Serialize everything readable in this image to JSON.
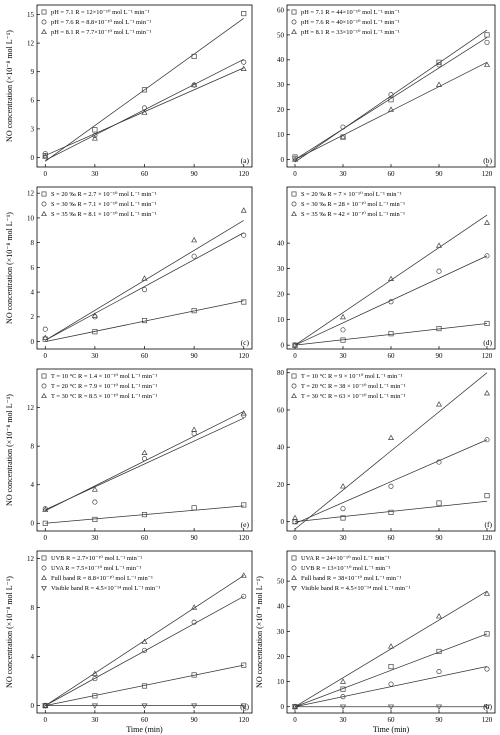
{
  "figure": {
    "x_axis_title": "Time (min)"
  },
  "chart_data": [
    {
      "panel": "(a)",
      "type": "scatter",
      "ylabel": "NO concentration (×10⁻⁸ mol L⁻¹)",
      "xlim": [
        -5,
        125
      ],
      "ylim": [
        -1,
        16
      ],
      "xticks": [
        0,
        30,
        60,
        90,
        120
      ],
      "yticks": [
        0,
        3,
        6,
        9,
        12,
        15
      ],
      "x": [
        0,
        30,
        60,
        90,
        120
      ],
      "series": [
        {
          "legend": "pH = 7.1 R = 12×10⁻¹⁰ mol L⁻¹ min⁻¹",
          "marker": "square",
          "values": [
            0.2,
            2.9,
            7.1,
            10.6,
            15.1
          ],
          "fit": [
            -0.4,
            14.6
          ]
        },
        {
          "legend": "pH = 7.6 R = 8.8×10⁻¹⁰ mol L⁻¹ min⁻¹",
          "marker": "circle",
          "values": [
            0.4,
            2.3,
            5.2,
            7.6,
            10.0
          ],
          "fit": [
            -0.3,
            10.3
          ]
        },
        {
          "legend": "pH = 8.1 R = 7.7×10⁻¹⁰ mol L⁻¹ min⁻¹",
          "marker": "triangle",
          "values": [
            0.1,
            2.0,
            4.7,
            7.6,
            9.3
          ],
          "fit": [
            0.2,
            9.4
          ]
        }
      ]
    },
    {
      "panel": "(b)",
      "type": "scatter",
      "ylabel": "",
      "xlim": [
        -5,
        125
      ],
      "ylim": [
        -3,
        62
      ],
      "xticks": [
        0,
        30,
        60,
        90,
        120
      ],
      "yticks": [
        0,
        10,
        20,
        30,
        40,
        50,
        60
      ],
      "x": [
        0,
        30,
        60,
        90,
        120
      ],
      "series": [
        {
          "legend": "pH = 7.1 R = 44×10⁻¹⁰ mol L⁻¹ min⁻¹",
          "marker": "square",
          "values": [
            1,
            9,
            24,
            39,
            50
          ],
          "fit": [
            -1,
            52
          ]
        },
        {
          "legend": "pH = 7.6 R = 40×10⁻¹⁰ mol L⁻¹ min⁻¹",
          "marker": "circle",
          "values": [
            0.5,
            13,
            26,
            38,
            47
          ],
          "fit": [
            0,
            49
          ]
        },
        {
          "legend": "pH = 8.1 R = 33×10⁻¹⁰ mol L⁻¹ min⁻¹",
          "marker": "triangle",
          "values": [
            0,
            9,
            20,
            30,
            38
          ],
          "fit": [
            0,
            39
          ]
        }
      ]
    },
    {
      "panel": "(c)",
      "type": "scatter",
      "ylabel": "NO concentration (×10⁻⁸ mol L⁻¹)",
      "xlim": [
        -5,
        125
      ],
      "ylim": [
        -0.6,
        12.5
      ],
      "xticks": [
        0,
        30,
        60,
        90,
        120
      ],
      "yticks": [
        0,
        2,
        4,
        6,
        8,
        10,
        12
      ],
      "x": [
        0,
        30,
        60,
        90,
        120
      ],
      "series": [
        {
          "legend": "S = 20 ‰ R = 2.7 × 10⁻¹⁰ mol L⁻¹ min⁻¹",
          "marker": "square",
          "values": [
            0.2,
            0.8,
            1.7,
            2.5,
            3.2
          ],
          "fit": [
            0.0,
            3.3
          ]
        },
        {
          "legend": "S = 30 ‰ R = 7.1 × 10⁻¹⁰ mol L⁻¹ min⁻¹",
          "marker": "circle",
          "values": [
            1.0,
            2.0,
            4.2,
            6.9,
            8.6
          ],
          "fit": [
            0.1,
            8.8
          ]
        },
        {
          "legend": "S = 35 ‰ R = 8.1 × 10⁻¹⁰ mol L⁻¹ min⁻¹",
          "marker": "triangle",
          "values": [
            0.3,
            2.1,
            5.1,
            8.2,
            10.6
          ],
          "fit": [
            0.1,
            9.8
          ]
        }
      ]
    },
    {
      "panel": "(d)",
      "type": "scatter",
      "ylabel": "",
      "xlim": [
        -5,
        125
      ],
      "ylim": [
        -1.5,
        62
      ],
      "xticks": [
        0,
        30,
        60,
        90,
        120
      ],
      "yticks": [
        0,
        10,
        20,
        30,
        40
      ],
      "x": [
        0,
        30,
        60,
        90,
        120
      ],
      "series": [
        {
          "legend": "S = 20 ‰ R = 7 × 10⁻¹⁰ mol L⁻¹ min⁻¹",
          "marker": "square",
          "values": [
            0,
            2,
            4.5,
            6.5,
            8.5
          ],
          "fit": [
            0,
            8.5
          ]
        },
        {
          "legend": "S = 30 ‰ R = 28 × 10⁻¹⁰ mol L⁻¹ min⁻¹",
          "marker": "circle",
          "values": [
            0,
            6,
            17,
            29,
            35
          ],
          "fit": [
            0,
            35
          ]
        },
        {
          "legend": "S = 35 ‰ R = 42 × 10⁻¹⁰ mol L⁻¹ min⁻¹",
          "marker": "triangle",
          "values": [
            0,
            11,
            26,
            39,
            48
          ],
          "fit": [
            0,
            51
          ]
        }
      ]
    },
    {
      "panel": "(e)",
      "type": "scatter",
      "ylabel": "NO concentration (×10⁻⁸ mol L⁻¹)",
      "xlim": [
        -5,
        125
      ],
      "ylim": [
        -0.8,
        16
      ],
      "xticks": [
        0,
        30,
        60,
        90,
        120
      ],
      "yticks": [
        0,
        4,
        8,
        12
      ],
      "x": [
        0,
        30,
        60,
        90,
        120
      ],
      "series": [
        {
          "legend": "T = 10 °C R = 1.4 × 10⁻¹⁰ mol L⁻¹ min⁻¹",
          "marker": "square",
          "values": [
            0,
            0.4,
            0.9,
            1.6,
            1.9
          ],
          "fit": [
            0,
            1.8
          ]
        },
        {
          "legend": "T = 20 °C R = 7.9 × 10⁻¹⁰ mol L⁻¹ min⁻¹",
          "marker": "circle",
          "values": [
            1.5,
            2.2,
            6.7,
            9.3,
            11.2
          ],
          "fit": [
            1.4,
            10.9
          ]
        },
        {
          "legend": "T = 30 °C R = 8.5 × 10⁻¹⁰ mol L⁻¹ min⁻¹",
          "marker": "triangle",
          "values": [
            1.4,
            3.5,
            7.3,
            9.7,
            11.4
          ],
          "fit": [
            1.3,
            11.6
          ]
        }
      ]
    },
    {
      "panel": "(f)",
      "type": "scatter",
      "ylabel": "",
      "xlim": [
        -5,
        125
      ],
      "ylim": [
        -5,
        82
      ],
      "xticks": [
        0,
        30,
        60,
        90,
        120
      ],
      "yticks": [
        0,
        20,
        40,
        60,
        80
      ],
      "x": [
        0,
        30,
        60,
        90,
        120
      ],
      "series": [
        {
          "legend": "T = 10 °C R = 9 × 10⁻¹⁰ mol L⁻¹ min⁻¹",
          "marker": "square",
          "values": [
            0,
            2,
            5,
            10,
            14
          ],
          "fit": [
            0,
            11
          ]
        },
        {
          "legend": "T = 20 °C R = 38 × 10⁻¹⁰ mol L⁻¹ min⁻¹",
          "marker": "circle",
          "values": [
            0,
            7,
            19,
            32,
            44
          ],
          "fit": [
            -1,
            44
          ]
        },
        {
          "legend": "T = 30 °C R = 63 × 10⁻¹⁰ mol L⁻¹ min⁻¹",
          "marker": "triangle",
          "values": [
            2,
            19,
            45,
            63,
            69
          ],
          "fit": [
            -4,
            80
          ]
        }
      ]
    },
    {
      "panel": "(g)",
      "type": "scatter",
      "ylabel": "NO concentration (×10⁻⁸ mol L⁻¹)",
      "xlim": [
        -5,
        125
      ],
      "ylim": [
        -0.6,
        12.6
      ],
      "xticks": [
        0,
        30,
        60,
        90,
        120
      ],
      "yticks": [
        0,
        4,
        8,
        12
      ],
      "x": [
        0,
        30,
        60,
        90,
        120
      ],
      "series": [
        {
          "legend": "UVB R = 2.7×10⁻¹⁰ mol L⁻¹ min⁻¹",
          "marker": "square",
          "values": [
            0,
            0.8,
            1.6,
            2.5,
            3.3
          ],
          "fit": [
            0,
            3.3
          ]
        },
        {
          "legend": "UVA R = 7.5×10⁻¹⁰ mol L⁻¹ min⁻¹",
          "marker": "circle",
          "values": [
            0,
            2.2,
            4.5,
            6.8,
            8.9
          ],
          "fit": [
            0,
            8.9
          ]
        },
        {
          "legend": "Full band R = 8.8×10⁻¹⁰ mol L⁻¹ min⁻¹",
          "marker": "triangle",
          "values": [
            0,
            2.6,
            5.2,
            8.0,
            10.6
          ],
          "fit": [
            0,
            10.6
          ]
        },
        {
          "legend": "Visible band R = 4.5×10⁻¹⁴ mol L⁻¹ min⁻¹",
          "marker": "down-triangle",
          "values": [
            0,
            0,
            0,
            0,
            0
          ],
          "fit": [
            0,
            0
          ]
        }
      ]
    },
    {
      "panel": "(h)",
      "type": "scatter",
      "ylabel": "NO concentration (×10⁻⁸ mol L⁻¹)",
      "xlim": [
        -5,
        125
      ],
      "ylim": [
        -2.5,
        62
      ],
      "xticks": [
        0,
        30,
        60,
        90,
        120
      ],
      "yticks": [
        0,
        10,
        20,
        30,
        40,
        50
      ],
      "x": [
        0,
        30,
        60,
        90,
        120
      ],
      "series": [
        {
          "legend": "UVA R = 24×10⁻¹⁰ mol L⁻¹ min⁻¹",
          "marker": "square",
          "values": [
            0,
            7,
            16,
            22,
            29
          ],
          "fit": [
            0,
            29
          ]
        },
        {
          "legend": "UVB R = 13×10⁻¹⁰ mol L⁻¹ min⁻¹",
          "marker": "circle",
          "values": [
            0,
            4,
            9,
            14,
            15
          ],
          "fit": [
            0,
            16
          ]
        },
        {
          "legend": "Full band R = 38×10⁻¹⁰ mol L⁻¹ min⁻¹",
          "marker": "triangle",
          "values": [
            0,
            10,
            24,
            36,
            45
          ],
          "fit": [
            0,
            46
          ]
        },
        {
          "legend": "Visible band R = 4.5×10⁻¹⁴ mol L⁻¹ min⁻¹",
          "marker": "down-triangle",
          "values": [
            0,
            0,
            0,
            0,
            0
          ],
          "fit": [
            0,
            0
          ]
        }
      ]
    }
  ]
}
